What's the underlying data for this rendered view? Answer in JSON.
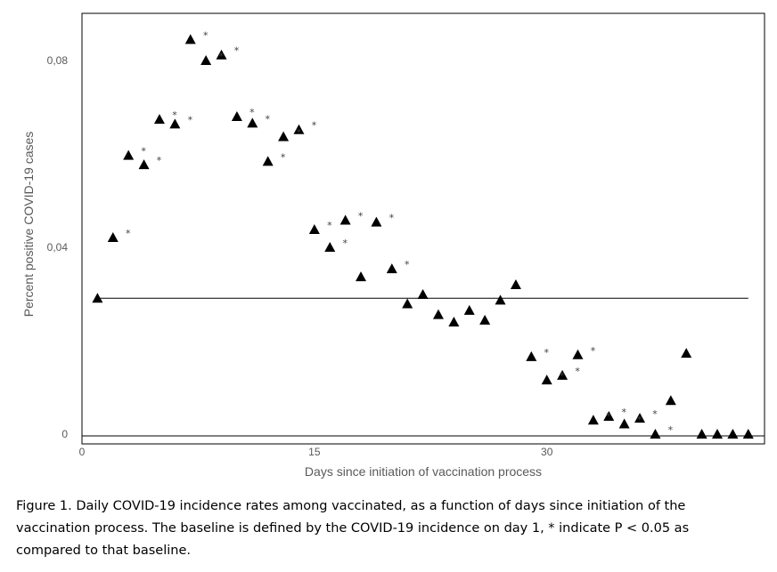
{
  "chart_data": {
    "type": "scatter",
    "xlabel": "Days since initiation of vaccination process",
    "ylabel": "Percent positive COVID-19 cases",
    "xlim": [
      0,
      44
    ],
    "ylim": [
      0,
      0.09
    ],
    "xticks": [
      0,
      15,
      30
    ],
    "xtick_labels": [
      "0",
      "15",
      "30"
    ],
    "yticks": [
      0,
      0.04,
      0.08
    ],
    "ytick_labels": [
      "0",
      "0,04",
      "0,08"
    ],
    "grid": false,
    "legend": "none",
    "marker": "triangle",
    "marker_color": "#000000",
    "baseline": 0.0291,
    "points": [
      {
        "x": 1,
        "y": 0.0291,
        "sig": false
      },
      {
        "x": 2,
        "y": 0.0421,
        "sig": true
      },
      {
        "x": 3,
        "y": 0.0597,
        "sig": true
      },
      {
        "x": 4,
        "y": 0.0577,
        "sig": true
      },
      {
        "x": 5,
        "y": 0.0674,
        "sig": true
      },
      {
        "x": 6,
        "y": 0.0664,
        "sig": true
      },
      {
        "x": 7,
        "y": 0.0845,
        "sig": true
      },
      {
        "x": 8,
        "y": 0.08,
        "sig": true
      },
      {
        "x": 9,
        "y": 0.0812,
        "sig": true
      },
      {
        "x": 10,
        "y": 0.068,
        "sig": true
      },
      {
        "x": 11,
        "y": 0.0666,
        "sig": true
      },
      {
        "x": 12,
        "y": 0.0584,
        "sig": true
      },
      {
        "x": 13,
        "y": 0.0637,
        "sig": true
      },
      {
        "x": 14,
        "y": 0.0652,
        "sig": true
      },
      {
        "x": 15,
        "y": 0.0438,
        "sig": true
      },
      {
        "x": 16,
        "y": 0.04,
        "sig": true
      },
      {
        "x": 17,
        "y": 0.0458,
        "sig": true
      },
      {
        "x": 18,
        "y": 0.0337,
        "sig": false
      },
      {
        "x": 19,
        "y": 0.0454,
        "sig": true
      },
      {
        "x": 20,
        "y": 0.0354,
        "sig": true
      },
      {
        "x": 21,
        "y": 0.0279,
        "sig": false
      },
      {
        "x": 22,
        "y": 0.0299,
        "sig": false
      },
      {
        "x": 23,
        "y": 0.0256,
        "sig": false
      },
      {
        "x": 24,
        "y": 0.024,
        "sig": false
      },
      {
        "x": 25,
        "y": 0.0265,
        "sig": false
      },
      {
        "x": 26,
        "y": 0.0244,
        "sig": false
      },
      {
        "x": 27,
        "y": 0.0287,
        "sig": false
      },
      {
        "x": 28,
        "y": 0.032,
        "sig": false
      },
      {
        "x": 29,
        "y": 0.0166,
        "sig": true
      },
      {
        "x": 30,
        "y": 0.0116,
        "sig": true
      },
      {
        "x": 31,
        "y": 0.0126,
        "sig": true
      },
      {
        "x": 32,
        "y": 0.017,
        "sig": true
      },
      {
        "x": 33,
        "y": 0.003,
        "sig": true
      },
      {
        "x": 34,
        "y": 0.0038,
        "sig": true
      },
      {
        "x": 35,
        "y": 0.0022,
        "sig": true
      },
      {
        "x": 36,
        "y": 0.0034,
        "sig": true
      },
      {
        "x": 37,
        "y": 0.0,
        "sig": true
      },
      {
        "x": 38,
        "y": 0.0072,
        "sig": false
      },
      {
        "x": 39,
        "y": 0.0173,
        "sig": false
      },
      {
        "x": 40,
        "y": 0.0,
        "sig": false
      },
      {
        "x": 41,
        "y": 0.0,
        "sig": false
      },
      {
        "x": 42,
        "y": 0.0,
        "sig": false
      },
      {
        "x": 43,
        "y": 0.0,
        "sig": false
      }
    ],
    "significance_marker": "*"
  },
  "caption": "Figure 1. Daily COVID-19 incidence rates among vaccinated, as a function of days since initiation of the vaccination process. The baseline is defined by the COVID-19 incidence on day 1, * indicate P < 0.05 as compared to that baseline."
}
